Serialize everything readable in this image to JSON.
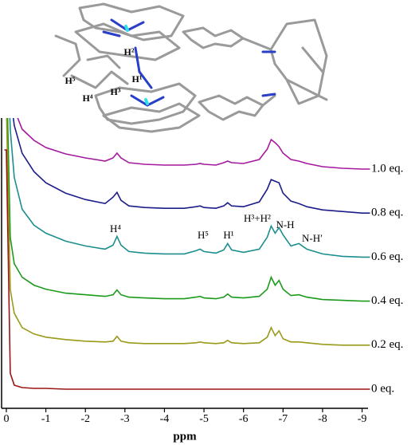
{
  "chart_data": {
    "type": "line",
    "x": [
      0.05,
      0,
      -0.1,
      -0.2,
      -0.4,
      -0.7,
      -1.0,
      -1.5,
      -2.0,
      -2.5,
      -2.7,
      -2.8,
      -2.9,
      -3.1,
      -3.5,
      -4.0,
      -4.5,
      -4.8,
      -4.9,
      -5.0,
      -5.3,
      -5.5,
      -5.6,
      -5.7,
      -6.0,
      -6.4,
      -6.6,
      -6.7,
      -6.8,
      -6.9,
      -7.0,
      -7.2,
      -7.4,
      -7.6,
      -8.0,
      -8.5,
      -9.0,
      -9.2
    ],
    "series": [
      {
        "name": "1.0 eq.",
        "color": "#a4189e",
        "values": [
          300,
          300,
          120,
          75,
          50,
          36,
          27,
          19,
          14,
          10,
          14,
          20,
          14,
          8,
          6,
          5,
          5,
          6,
          7,
          6,
          5,
          8,
          10,
          8,
          7,
          12,
          25,
          37,
          33,
          28,
          20,
          12,
          10,
          7,
          3,
          1,
          0,
          0
        ]
      },
      {
        "name": "0.8 eq.",
        "color": "#1c1c8a",
        "values": [
          300,
          300,
          150,
          110,
          75,
          52,
          38,
          25,
          17,
          12,
          20,
          26,
          16,
          9,
          7,
          6,
          6,
          8,
          9,
          7,
          6,
          9,
          13,
          9,
          8,
          14,
          30,
          42,
          40,
          38,
          25,
          15,
          12,
          8,
          4,
          2,
          0,
          0
        ]
      },
      {
        "name": "0.6 eq.",
        "color": "#1d8e8e",
        "values": [
          300,
          300,
          160,
          100,
          60,
          40,
          30,
          20,
          14,
          10,
          15,
          26,
          15,
          7,
          5,
          4,
          4,
          8,
          10,
          7,
          5,
          9,
          17,
          9,
          6,
          10,
          25,
          39,
          30,
          37,
          28,
          14,
          17,
          10,
          4,
          1,
          0,
          0
        ]
      },
      {
        "name": "0.4 eq.",
        "color": "#1c9a1c",
        "values": [
          300,
          300,
          80,
          47,
          30,
          20,
          15,
          10,
          8,
          6,
          8,
          14,
          8,
          5,
          4,
          3,
          3,
          5,
          6,
          4,
          3,
          5,
          9,
          5,
          4,
          6,
          15,
          30,
          20,
          26,
          15,
          7,
          8,
          5,
          2,
          1,
          0,
          0
        ]
      },
      {
        "name": "0.2 eq.",
        "color": "#9a9a1a",
        "values": [
          300,
          300,
          70,
          40,
          22,
          14,
          10,
          7,
          5,
          4,
          5,
          11,
          5,
          3,
          2,
          2,
          2,
          3,
          4,
          3,
          2,
          3,
          6,
          3,
          2,
          3,
          10,
          22,
          12,
          18,
          8,
          4,
          4,
          3,
          1,
          0,
          0,
          0
        ]
      },
      {
        "name": "0 eq.",
        "color": "#9a1414",
        "values": [
          300,
          300,
          20,
          5,
          2,
          1,
          1,
          0,
          0,
          0,
          0,
          0,
          0,
          0,
          0,
          0,
          0,
          0,
          0,
          0,
          0,
          0,
          0,
          0,
          0,
          0,
          0,
          0,
          0,
          0,
          0,
          0,
          0,
          0,
          0,
          0,
          0,
          0
        ]
      }
    ],
    "xlabel": "ppm",
    "xlim": [
      0.12,
      -9.15
    ],
    "xticks": [
      0,
      -1,
      -2,
      -3,
      -4,
      -5,
      -6,
      -7,
      -8,
      -9
    ],
    "annotations": [
      "H⁴",
      "H⁵",
      "H¹",
      "H³+H²",
      "N-H",
      "N-H′"
    ],
    "structure_labels": [
      "H²",
      "H⁵",
      "H⁴",
      "H³",
      "H¹"
    ]
  }
}
